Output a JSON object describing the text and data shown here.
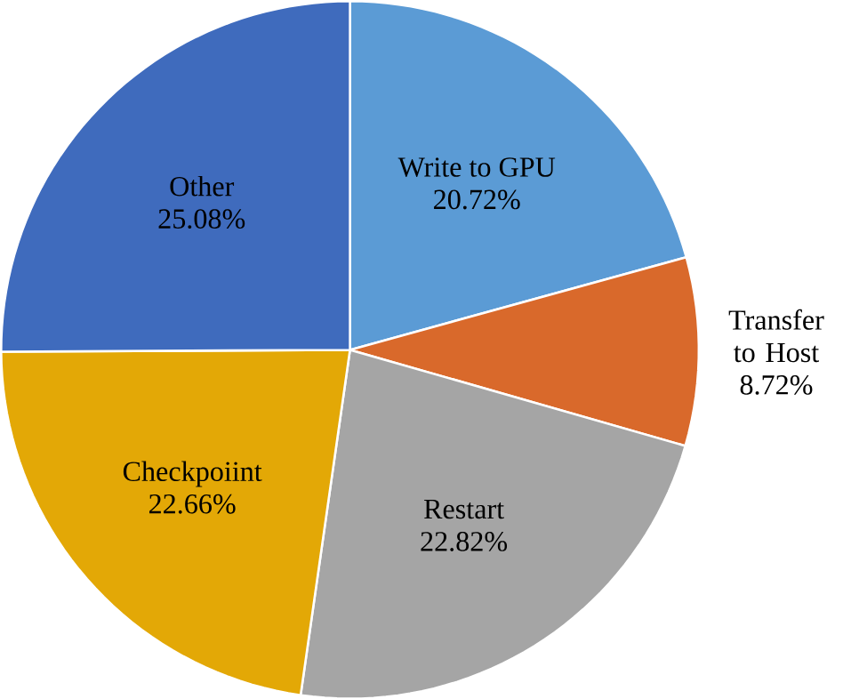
{
  "chart_data": {
    "type": "pie",
    "categories": [
      "Write to GPU",
      "Transfer to Host",
      "Restart",
      "Checkpoiint",
      "Other"
    ],
    "values": [
      20.72,
      8.72,
      22.82,
      22.66,
      25.08
    ],
    "value_labels": [
      "20.72%",
      "8.72%",
      "22.82%",
      "22.66%",
      "25.08%"
    ],
    "colors": [
      "#5b9bd5",
      "#d9692b",
      "#a5a5a5",
      "#e3a806",
      "#3f6bbd"
    ]
  }
}
